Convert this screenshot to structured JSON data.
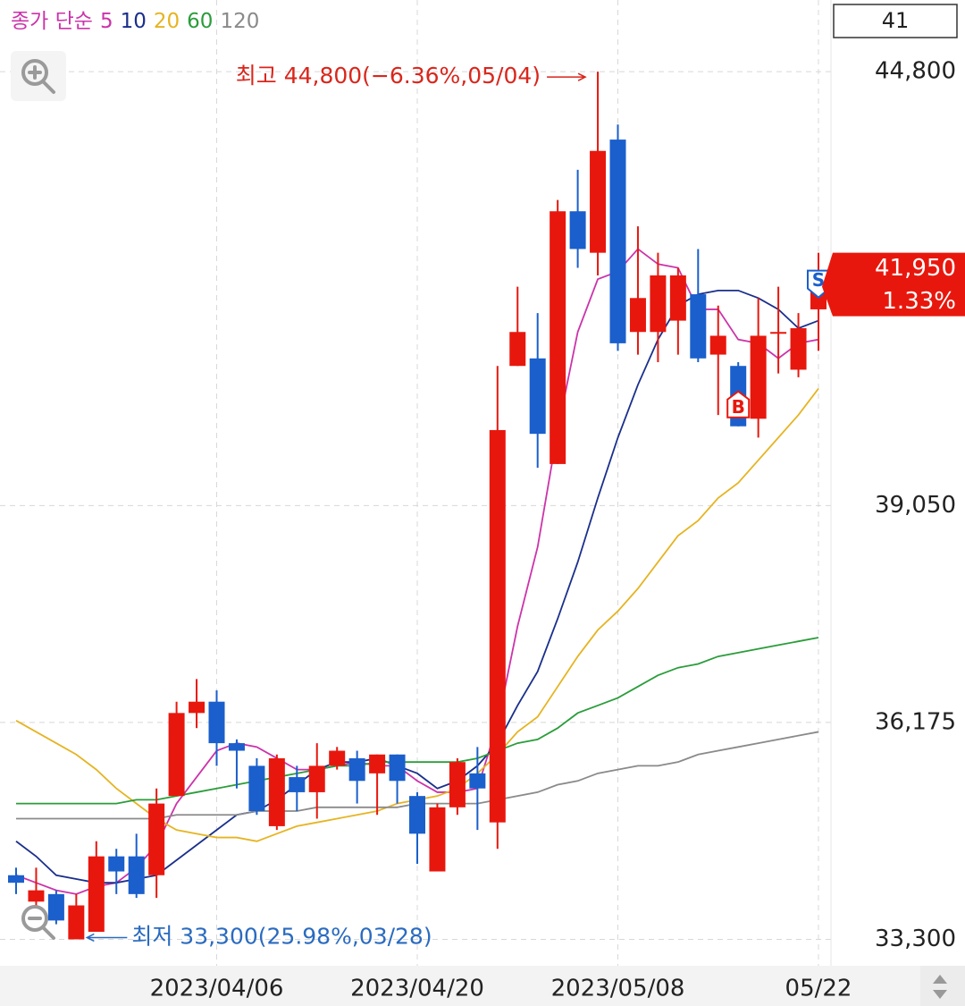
{
  "chart_data": {
    "type": "candlestick",
    "legend_label": "종가 단순",
    "visible_count": 41,
    "categories": [
      null,
      null,
      null,
      null,
      null,
      null,
      null,
      null,
      null,
      null,
      "2023/04/06",
      null,
      null,
      null,
      null,
      null,
      null,
      null,
      null,
      null,
      "2023/04/20",
      null,
      null,
      null,
      null,
      null,
      null,
      null,
      null,
      null,
      "2023/05/08",
      null,
      null,
      null,
      null,
      null,
      null,
      null,
      null,
      null,
      "05/22"
    ],
    "open": [
      34150,
      33800,
      33900,
      33300,
      33400,
      34400,
      34400,
      34150,
      35200,
      36300,
      36450,
      35900,
      35600,
      34800,
      35450,
      35250,
      35600,
      35700,
      35500,
      35750,
      35200,
      34200,
      35050,
      35500,
      34850,
      40900,
      41000,
      39600,
      42950,
      42400,
      43900,
      41350,
      41350,
      41500,
      41850,
      41050,
      40900,
      40200,
      41350,
      40850,
      41650
    ],
    "high": [
      34250,
      34250,
      33950,
      33900,
      34600,
      34500,
      34700,
      35300,
      36450,
      36750,
      36600,
      35950,
      35700,
      35750,
      35600,
      35900,
      35850,
      35800,
      35750,
      35750,
      35250,
      35100,
      35700,
      35850,
      40900,
      41950,
      41600,
      43100,
      43500,
      44800,
      44100,
      42750,
      42400,
      42200,
      42450,
      41700,
      40950,
      41800,
      41950,
      41600,
      42400
    ],
    "low": [
      33900,
      33750,
      33500,
      33300,
      33400,
      33900,
      33850,
      33850,
      35200,
      36100,
      35600,
      35300,
      34950,
      34750,
      35000,
      34900,
      35550,
      35100,
      34950,
      35100,
      34300,
      34200,
      34950,
      34750,
      34500,
      40900,
      39550,
      39600,
      42200,
      42100,
      41100,
      41050,
      40950,
      41050,
      40950,
      40250,
      40100,
      39950,
      40800,
      40750,
      41100
    ],
    "close": [
      34050,
      33950,
      33550,
      33750,
      34400,
      34200,
      33900,
      35100,
      36300,
      36450,
      35900,
      35800,
      35000,
      35700,
      35250,
      35600,
      35800,
      35400,
      35750,
      35400,
      34700,
      35050,
      35650,
      35300,
      40050,
      41350,
      40000,
      42950,
      42450,
      43750,
      41200,
      41800,
      42100,
      42100,
      41000,
      41300,
      40100,
      41300,
      41350,
      41400,
      41950
    ],
    "up_color": "#e8170d",
    "down_color": "#1a5fcc",
    "series": [
      {
        "name": "5",
        "color": "#cc33aa",
        "values": [
          34150,
          34050,
          33950,
          33900,
          34000,
          34050,
          34250,
          34550,
          35100,
          35450,
          35800,
          35900,
          35850,
          35700,
          35550,
          35550,
          35600,
          35650,
          35600,
          35600,
          35400,
          35250,
          35250,
          35300,
          36150,
          37450,
          38500,
          40050,
          41350,
          42050,
          42150,
          42450,
          42250,
          42200,
          41650,
          41650,
          41250,
          41200,
          41000,
          41200,
          41250
        ]
      },
      {
        "name": "10",
        "color": "#1a2f8c",
        "values": [
          34600,
          34400,
          34150,
          34100,
          34050,
          34050,
          34100,
          34150,
          34350,
          34550,
          34750,
          34950,
          35000,
          35150,
          35350,
          35550,
          35650,
          35650,
          35700,
          35600,
          35500,
          35300,
          35400,
          35600,
          35900,
          36400,
          36850,
          37550,
          38300,
          39150,
          39950,
          40650,
          41250,
          41700,
          41850,
          41900,
          41900,
          41800,
          41650,
          41400,
          41500
        ]
      },
      {
        "name": "20",
        "color": "#e6b422",
        "values": [
          36200,
          36050,
          35900,
          35750,
          35550,
          35300,
          35100,
          34900,
          34750,
          34700,
          34650,
          34650,
          34600,
          34700,
          34800,
          34850,
          34900,
          34950,
          35000,
          35100,
          35150,
          35200,
          35300,
          35500,
          35750,
          36050,
          36250,
          36650,
          37050,
          37400,
          37650,
          37950,
          38300,
          38650,
          38850,
          39150,
          39350,
          39650,
          39950,
          40250,
          40600
        ]
      },
      {
        "name": "60",
        "color": "#2a9d3a",
        "values": [
          35100,
          35100,
          35100,
          35100,
          35100,
          35100,
          35150,
          35150,
          35200,
          35250,
          35300,
          35350,
          35400,
          35450,
          35500,
          35550,
          35600,
          35600,
          35650,
          35650,
          35650,
          35650,
          35650,
          35700,
          35800,
          35900,
          35950,
          36100,
          36300,
          36400,
          36500,
          36650,
          36800,
          36900,
          36950,
          37050,
          37100,
          37150,
          37200,
          37250,
          37300
        ]
      },
      {
        "name": "120",
        "color": "#8a8a8a",
        "values": [
          34900,
          34900,
          34900,
          34900,
          34900,
          34900,
          34900,
          34900,
          34950,
          34950,
          34950,
          34950,
          35000,
          35000,
          35000,
          35050,
          35050,
          35050,
          35050,
          35050,
          35100,
          35100,
          35100,
          35100,
          35150,
          35200,
          35250,
          35350,
          35400,
          35500,
          35550,
          35600,
          35600,
          35650,
          35750,
          35800,
          35850,
          35900,
          35950,
          36000,
          36050
        ]
      }
    ],
    "ylim": [
      32950,
      45750
    ],
    "yticks": [
      {
        "value": 33300,
        "label": "33,300"
      },
      {
        "value": 36175,
        "label": "36,175"
      },
      {
        "value": 39050,
        "label": "39,050"
      },
      {
        "value": 44800,
        "label": "44,800"
      }
    ],
    "grid": true,
    "annotations": {
      "high": "최고 44,800(−6.36%,05/04)",
      "low": "최저 33,300(25.98%,03/28)"
    },
    "signals": [
      {
        "label": "B",
        "index": 36
      },
      {
        "label": "S",
        "index": 40
      }
    ],
    "last_price": {
      "price_label": "41,950",
      "change_label": "1.33%"
    }
  }
}
